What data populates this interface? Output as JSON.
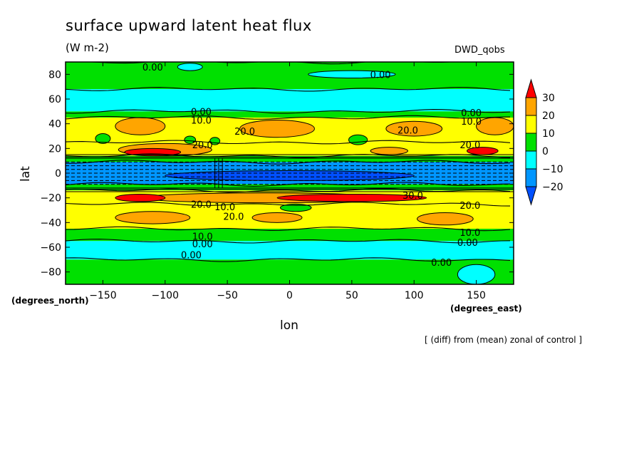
{
  "chart_data": {
    "type": "heatmap",
    "subtype": "filled-contour",
    "title": "surface upward latent heat flux",
    "units": "(W m-2)",
    "dataset": "DWD_qobs",
    "xlabel": "lon",
    "ylabel": "lat",
    "x_units": "(degrees_east)",
    "y_units": "(degrees_north)",
    "footnote": "[ (diff) from (mean) zonal of control ]",
    "xlim": [
      -180,
      180
    ],
    "ylim": [
      -90,
      90
    ],
    "x_ticks": [
      -150,
      -100,
      -50,
      0,
      50,
      100,
      150
    ],
    "y_ticks": [
      -80,
      -60,
      -40,
      -20,
      0,
      20,
      40,
      60,
      80
    ],
    "x_tick_labels": [
      "−150",
      "−100",
      "−50",
      "0",
      "50",
      "100",
      "150"
    ],
    "y_tick_labels": [
      "−80",
      "−60",
      "−40",
      "−20",
      "0",
      "20",
      "40",
      "60",
      "80"
    ],
    "colorbar": {
      "labels": [
        "30",
        "20",
        "10",
        "0",
        "−10",
        "−20"
      ],
      "levels": [
        30,
        20,
        10,
        0,
        -10,
        -20
      ],
      "colors": [
        "#ff0000",
        "#ffa500",
        "#ffff00",
        "#00e000",
        "#00ffff",
        "#0096ff",
        "#0050ff"
      ],
      "extend": "both"
    },
    "bands": [
      {
        "lat_min": 68,
        "lat_max": 90,
        "value": 5
      },
      {
        "lat_min": 50,
        "lat_max": 68,
        "value": -5
      },
      {
        "lat_min": 45,
        "lat_max": 50,
        "value": 5
      },
      {
        "lat_min": 25,
        "lat_max": 45,
        "value": 15
      },
      {
        "lat_min": 14,
        "lat_max": 25,
        "value": 15
      },
      {
        "lat_min": 9,
        "lat_max": 14,
        "value": 5
      },
      {
        "lat_min": -9,
        "lat_max": 9,
        "value": -15
      },
      {
        "lat_min": -14,
        "lat_max": -9,
        "value": 5
      },
      {
        "lat_min": -25,
        "lat_max": -14,
        "value": 15
      },
      {
        "lat_min": -45,
        "lat_max": -25,
        "value": 15
      },
      {
        "lat_min": -55,
        "lat_max": -45,
        "value": 5
      },
      {
        "lat_min": -70,
        "lat_max": -55,
        "value": -5
      },
      {
        "lat_min": -90,
        "lat_max": -70,
        "value": 5
      }
    ],
    "anomalies": [
      {
        "lon": -120,
        "lat": 38,
        "w": 40,
        "h": 7,
        "value": 25
      },
      {
        "lon": -10,
        "lat": 36,
        "w": 60,
        "h": 7,
        "value": 25
      },
      {
        "lon": 100,
        "lat": 36,
        "w": 45,
        "h": 6,
        "value": 25
      },
      {
        "lon": 165,
        "lat": 38,
        "w": 30,
        "h": 7,
        "value": 25
      },
      {
        "lon": -150,
        "lat": 28,
        "w": 12,
        "h": 4,
        "value": 5
      },
      {
        "lon": -80,
        "lat": 27,
        "w": 9,
        "h": 3,
        "value": 5
      },
      {
        "lon": 55,
        "lat": 27,
        "w": 15,
        "h": 4,
        "value": 5
      },
      {
        "lon": -60,
        "lat": 26,
        "w": 8,
        "h": 3,
        "value": 5
      },
      {
        "lon": -100,
        "lat": 19,
        "w": 75,
        "h": 5,
        "value": 25
      },
      {
        "lon": -110,
        "lat": 17,
        "w": 45,
        "h": 3,
        "value": 35
      },
      {
        "lon": 80,
        "lat": 18,
        "w": 30,
        "h": 3,
        "value": 25
      },
      {
        "lon": 155,
        "lat": 18,
        "w": 25,
        "h": 3,
        "value": 35
      },
      {
        "lon": -20,
        "lat": -20,
        "w": 200,
        "h": 4,
        "value": 25
      },
      {
        "lon": 50,
        "lat": -20,
        "w": 120,
        "h": 3,
        "value": 35
      },
      {
        "lon": -120,
        "lat": -20,
        "w": 40,
        "h": 3,
        "value": 35
      },
      {
        "lon": -110,
        "lat": -36,
        "w": 60,
        "h": 5,
        "value": 25
      },
      {
        "lon": -10,
        "lat": -36,
        "w": 40,
        "h": 4,
        "value": 25
      },
      {
        "lon": 125,
        "lat": -37,
        "w": 45,
        "h": 5,
        "value": 25
      },
      {
        "lon": 5,
        "lat": -28,
        "w": 25,
        "h": 3,
        "value": 5
      },
      {
        "lon": 150,
        "lat": -82,
        "w": 30,
        "h": 8,
        "value": -5
      },
      {
        "lon": -80,
        "lat": 86,
        "w": 20,
        "h": 3,
        "value": -5
      },
      {
        "lon": 50,
        "lat": 80,
        "w": 70,
        "h": 3,
        "value": -5
      },
      {
        "lon": 0,
        "lat": -2,
        "w": 200,
        "h": 4,
        "value": -25
      }
    ],
    "contour_labels": [
      {
        "text": "0.00",
        "lon": -110,
        "lat": 86
      },
      {
        "text": "0.00",
        "lon": 73,
        "lat": 80
      },
      {
        "text": "0.00",
        "lon": -71,
        "lat": 50
      },
      {
        "text": "10.0",
        "lon": -71,
        "lat": 43
      },
      {
        "text": "20.0",
        "lon": -36,
        "lat": 34
      },
      {
        "text": "20.0",
        "lon": 95,
        "lat": 35
      },
      {
        "text": "0.00",
        "lon": 146,
        "lat": 49
      },
      {
        "text": "10.0",
        "lon": 146,
        "lat": 42
      },
      {
        "text": "20.0",
        "lon": -70,
        "lat": 23
      },
      {
        "text": "20.0",
        "lon": 145,
        "lat": 23
      },
      {
        "text": "10.0",
        "lon": -52,
        "lat": -27
      },
      {
        "text": "20.0",
        "lon": -45,
        "lat": -35
      },
      {
        "text": "30.0",
        "lon": 99,
        "lat": -18
      },
      {
        "text": "20.0",
        "lon": -71,
        "lat": -25
      },
      {
        "text": "20.0",
        "lon": 145,
        "lat": -26
      },
      {
        "text": "10.0",
        "lon": -70,
        "lat": -51
      },
      {
        "text": "0.00",
        "lon": -70,
        "lat": -57
      },
      {
        "text": "10.0",
        "lon": 145,
        "lat": -48
      },
      {
        "text": "0.00",
        "lon": 143,
        "lat": -56
      },
      {
        "text": "0.00",
        "lon": -79,
        "lat": -66
      },
      {
        "text": "0.00",
        "lon": 122,
        "lat": -72
      }
    ]
  }
}
